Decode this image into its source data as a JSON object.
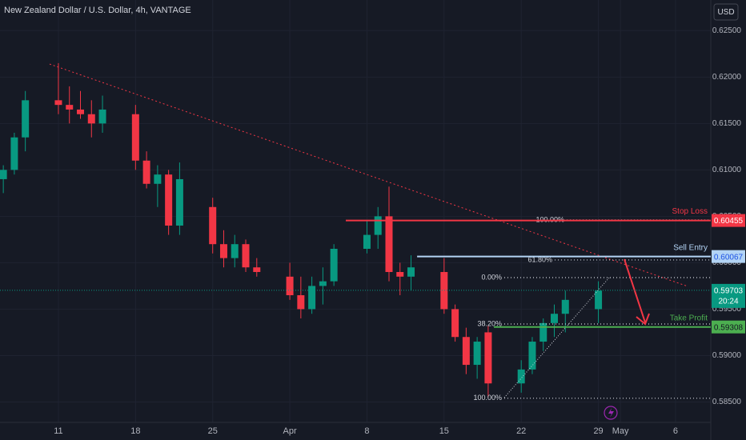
{
  "chart_data": {
    "type": "candlestick",
    "title": "New Zealand Dollar / U.S. Dollar, 4h, VANTAGE",
    "currency": "USD",
    "x": [
      5,
      6,
      7,
      10,
      11,
      12,
      13,
      14,
      17,
      18,
      19,
      20,
      21,
      24,
      25,
      26,
      27,
      28,
      31,
      32,
      33,
      34,
      35,
      38,
      39,
      40,
      41,
      42,
      45,
      46,
      47,
      48,
      49,
      52,
      53,
      54,
      55,
      56,
      59
    ],
    "open": [
      0.609,
      0.61,
      0.6135,
      0.6175,
      0.617,
      0.6165,
      0.616,
      0.615,
      0.616,
      0.611,
      0.6085,
      0.6095,
      0.604,
      0.606,
      0.602,
      0.6005,
      0.602,
      0.5995,
      0.5985,
      0.5965,
      0.595,
      0.5975,
      0.598,
      0.6015,
      0.603,
      0.605,
      0.599,
      0.5985,
      0.599,
      0.595,
      0.592,
      0.589,
      0.5925,
      0.587,
      0.5885,
      0.5915,
      0.5935,
      0.5945,
      0.595
    ],
    "high": [
      0.6105,
      0.614,
      0.6185,
      0.6215,
      0.619,
      0.6185,
      0.6175,
      0.618,
      0.617,
      0.612,
      0.6105,
      0.61,
      0.6108,
      0.607,
      0.6035,
      0.603,
      0.6025,
      0.6005,
      0.6,
      0.5985,
      0.5985,
      0.5995,
      0.602,
      0.6045,
      0.606,
      0.6082,
      0.6,
      0.6008,
      0.6005,
      0.5955,
      0.593,
      0.592,
      0.5932,
      0.5895,
      0.592,
      0.594,
      0.5955,
      0.597,
      0.598
    ],
    "low": [
      0.6075,
      0.6095,
      0.612,
      0.616,
      0.615,
      0.6155,
      0.6135,
      0.614,
      0.61,
      0.608,
      0.606,
      0.603,
      0.603,
      0.601,
      0.5995,
      0.5995,
      0.599,
      0.5985,
      0.596,
      0.594,
      0.5945,
      0.5955,
      0.5975,
      0.601,
      0.6015,
      0.598,
      0.5965,
      0.597,
      0.5945,
      0.5915,
      0.588,
      0.5875,
      0.5855,
      0.586,
      0.588,
      0.5905,
      0.592,
      0.5925,
      0.5935
    ],
    "close": [
      0.61,
      0.6135,
      0.6175,
      0.617,
      0.6165,
      0.616,
      0.615,
      0.6165,
      0.611,
      0.6085,
      0.6095,
      0.604,
      0.609,
      0.602,
      0.6005,
      0.602,
      0.5995,
      0.599,
      0.5965,
      0.595,
      0.5975,
      0.598,
      0.6015,
      0.603,
      0.605,
      0.599,
      0.5985,
      0.5995,
      0.595,
      0.592,
      0.589,
      0.5915,
      0.587,
      0.5885,
      0.5915,
      0.5935,
      0.5945,
      0.596,
      0.597
    ],
    "up_color": "#089981",
    "down_color": "#f23645",
    "xlim": [
      4.7,
      69.2
    ],
    "ylim": [
      0.5828,
      0.6283
    ],
    "xticks": [
      {
        "value": 10,
        "label": "11"
      },
      {
        "value": 17,
        "label": "18"
      },
      {
        "value": 24,
        "label": "25"
      },
      {
        "value": 31,
        "label": "Apr"
      },
      {
        "value": 38,
        "label": "8"
      },
      {
        "value": 45,
        "label": "15"
      },
      {
        "value": 52,
        "label": "22"
      },
      {
        "value": 59,
        "label": "29"
      },
      {
        "value": 61,
        "label": "May"
      },
      {
        "value": 66,
        "label": "6"
      }
    ],
    "yticks": [
      {
        "value": 0.625,
        "label": "0.62500"
      },
      {
        "value": 0.62,
        "label": "0.62000"
      },
      {
        "value": 0.615,
        "label": "0.61500"
      },
      {
        "value": 0.61,
        "label": "0.61000"
      },
      {
        "value": 0.605,
        "label": "0.60500"
      },
      {
        "value": 0.6,
        "label": "0.60000"
      },
      {
        "value": 0.595,
        "label": "0.59500"
      },
      {
        "value": 0.59,
        "label": "0.59000"
      },
      {
        "value": 0.585,
        "label": "0.58500"
      }
    ],
    "grid": true,
    "trendline": {
      "x": [
        9.2,
        67.0
      ],
      "y": [
        0.6214,
        0.5975
      ],
      "color": "#f23645"
    },
    "levels": [
      {
        "name": "Stop Loss",
        "price": 0.60455,
        "x_start": 36.08,
        "color": "#f23645",
        "label_text_color": "#ffffff"
      },
      {
        "name": "Sell Entry",
        "price": 0.60067,
        "x_start": 42.55,
        "color": "#b3d4f5",
        "label_text_color": "#1e53e5"
      },
      {
        "name": "Take Profit",
        "price": 0.59308,
        "x_start": 49.52,
        "color": "#4caf50",
        "label_text_color": "#131722"
      }
    ],
    "fib_levels": [
      {
        "label": "100.00%",
        "value": 0.6046,
        "x": 56.13
      },
      {
        "label": "61.80%",
        "value": 0.6003,
        "x": 55.04
      },
      {
        "label": "0.00%",
        "value": 0.5984,
        "x": 50.46
      },
      {
        "label": "38.20%",
        "value": 0.5934,
        "x": 50.46
      },
      {
        "label": "100.00%",
        "value": 0.5854,
        "x": 50.46
      }
    ],
    "current_price": {
      "value": 0.59703,
      "countdown": "20:24",
      "color": "#089981"
    }
  }
}
